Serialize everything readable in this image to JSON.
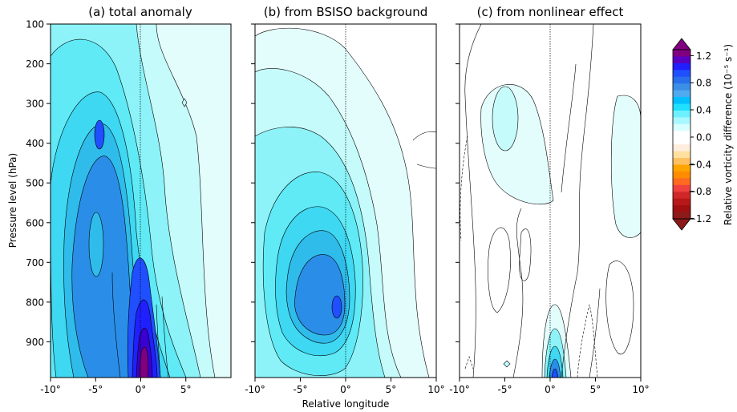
{
  "figure": {
    "xlabel": "Relative longitude",
    "ylabel": "Pressure level (hPa)",
    "colorbar_label": "Relative vorticity difference (10⁻⁵ s⁻¹)"
  },
  "chart_data": [
    {
      "type": "heatmap",
      "title": "(a) total anomaly",
      "xlim": [
        -10,
        10
      ],
      "ylim": [
        990,
        100
      ],
      "x_ticks": [
        "-10°",
        "-5°",
        "0°",
        "5°",
        "10°"
      ],
      "y_ticks": [
        "100",
        "200",
        "300",
        "400",
        "500",
        "600",
        "700",
        "800",
        "900"
      ],
      "features": [
        {
          "kind": "blob",
          "x": 0.6,
          "y": 880,
          "rx": 1.6,
          "ry": 150,
          "level": 1.3
        },
        {
          "kind": "blob",
          "x": -1.8,
          "y": 630,
          "rx": 3.6,
          "ry": 300,
          "level": 0.9
        },
        {
          "kind": "blob",
          "x": -2.3,
          "y": 430,
          "rx": 0.6,
          "ry": 40,
          "level": 0.9
        }
      ]
    },
    {
      "type": "heatmap",
      "title": "(b) from BSISO background",
      "xlim": [
        -10,
        10
      ],
      "ylim": [
        990,
        100
      ],
      "x_ticks": [
        "-10°",
        "-5°",
        "0°",
        "5°",
        "10°"
      ],
      "y_ticks": [
        "100",
        "200",
        "300",
        "400",
        "500",
        "600",
        "700",
        "800",
        "900"
      ],
      "features": [
        {
          "kind": "blob",
          "x": -0.8,
          "y": 800,
          "rx": 5.0,
          "ry": 330,
          "level": 0.8
        },
        {
          "kind": "blob",
          "x": -0.8,
          "y": 810,
          "rx": 0.5,
          "ry": 40,
          "level": 0.9
        }
      ]
    },
    {
      "type": "heatmap",
      "title": "(c) from nonlinear effect",
      "xlim": [
        -10,
        10
      ],
      "ylim": [
        990,
        100
      ],
      "x_ticks": [
        "-10°",
        "-5°",
        "0°",
        "5°",
        "10°"
      ],
      "y_ticks": [
        "100",
        "200",
        "300",
        "400",
        "500",
        "600",
        "700",
        "800",
        "900"
      ],
      "features": [
        {
          "kind": "blob",
          "x": 0.2,
          "y": 960,
          "rx": 1.0,
          "ry": 130,
          "level": 0.8
        },
        {
          "kind": "blob",
          "x": -3.8,
          "y": 390,
          "rx": 1.6,
          "ry": 90,
          "level": 0.2
        },
        {
          "kind": "blob",
          "x": 8.3,
          "y": 480,
          "rx": 1.8,
          "ry": 200,
          "level": 0.2
        }
      ]
    }
  ],
  "colorbar": {
    "ticks": [
      "1.2",
      "0.8",
      "0.4",
      "0.0",
      "−0.4",
      "−0.8",
      "−1.2"
    ],
    "colors": [
      "#800080",
      "#5a00c0",
      "#2020ff",
      "#1f4fff",
      "#2a6fea",
      "#3a8fe6",
      "#50aaf0",
      "#00bfff",
      "#1fe0ff",
      "#6ef0ff",
      "#aaf8ff",
      "#d8ffff",
      "#ffffff",
      "#ffffff",
      "#ffeedd",
      "#ffe0a0",
      "#ffc060",
      "#ffa500",
      "#ff8c00",
      "#ff6a20",
      "#f04040",
      "#d02828",
      "#b81818",
      "#a01010",
      "#8b1a1a"
    ]
  }
}
